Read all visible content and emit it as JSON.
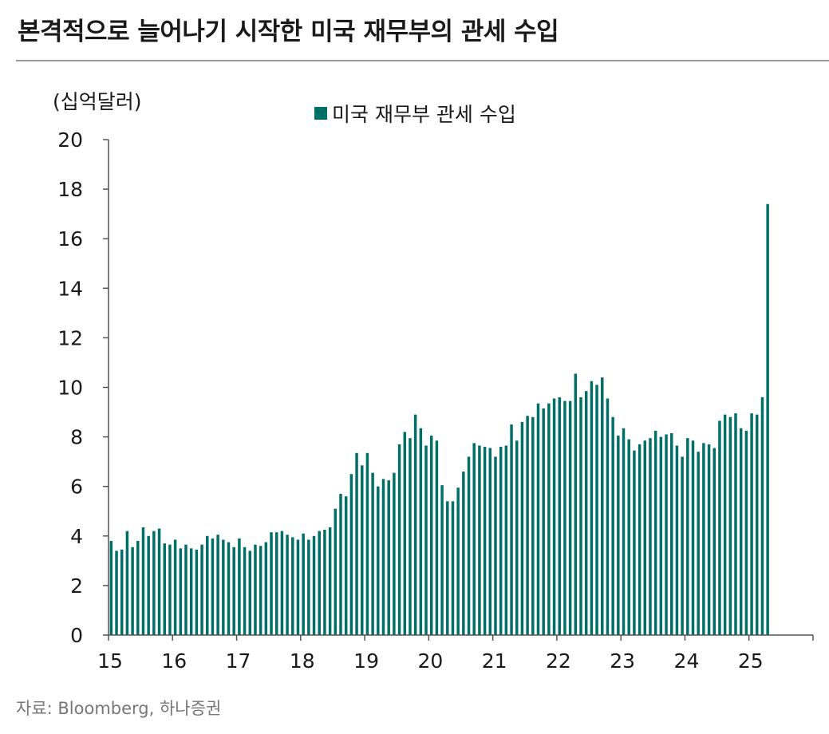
{
  "header": {
    "title": "본격적으로 늘어나기 시작한 미국 재무부의 관세 수입"
  },
  "source": "자료: Bloomberg, 하나증권",
  "colors": {
    "bar": "#006f66",
    "axis": "#555555",
    "title": "#1a1a1a",
    "source": "#777777"
  },
  "chart_data": {
    "type": "bar",
    "title": "본격적으로 늘어나기 시작한 미국 재무부의 관세 수입",
    "ylabel": "(십억달러)",
    "xlabel": "",
    "ylim": [
      0,
      20
    ],
    "yticks": [
      "0",
      "2",
      "4",
      "6",
      "8",
      "10",
      "12",
      "14",
      "16",
      "18",
      "20"
    ],
    "xticks": [
      "15",
      "16",
      "17",
      "18",
      "19",
      "20",
      "21",
      "22",
      "23",
      "24",
      "25"
    ],
    "xlim_months": [
      0,
      132
    ],
    "grid": false,
    "legend_position": "top-center",
    "series": [
      {
        "name": "미국 재무부 관세 수입",
        "frequency": "monthly, Jan 2015 to Apr 2025",
        "values": [
          3.8,
          3.4,
          3.45,
          4.2,
          3.55,
          3.8,
          4.35,
          4.0,
          4.2,
          4.3,
          3.7,
          3.65,
          3.85,
          3.5,
          3.65,
          3.5,
          3.45,
          3.65,
          4.0,
          3.9,
          4.05,
          3.85,
          3.75,
          3.55,
          3.9,
          3.55,
          3.4,
          3.65,
          3.6,
          3.75,
          4.15,
          4.15,
          4.2,
          4.05,
          3.95,
          3.85,
          4.1,
          3.85,
          4.0,
          4.2,
          4.25,
          4.35,
          5.1,
          5.7,
          5.6,
          6.5,
          7.35,
          6.85,
          7.35,
          6.55,
          6.0,
          6.3,
          6.25,
          6.55,
          7.7,
          8.2,
          7.95,
          8.9,
          8.35,
          7.65,
          8.05,
          7.85,
          6.05,
          5.4,
          5.4,
          5.95,
          6.6,
          7.2,
          7.75,
          7.65,
          7.6,
          7.55,
          7.2,
          7.6,
          7.65,
          8.5,
          7.85,
          8.6,
          8.85,
          8.8,
          9.35,
          9.15,
          9.35,
          9.55,
          9.6,
          9.45,
          9.45,
          10.55,
          9.6,
          9.85,
          10.25,
          10.1,
          10.4,
          9.55,
          8.8,
          8.05,
          8.35,
          7.9,
          7.45,
          7.7,
          7.85,
          7.95,
          8.25,
          8.0,
          8.1,
          8.15,
          7.65,
          7.2,
          7.95,
          7.85,
          7.4,
          7.75,
          7.7,
          7.55,
          8.65,
          8.9,
          8.8,
          8.95,
          8.35,
          8.25,
          8.95,
          8.9,
          9.6,
          17.4
        ]
      }
    ]
  }
}
